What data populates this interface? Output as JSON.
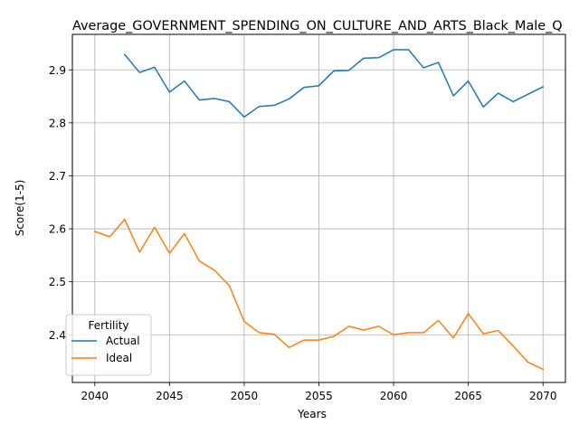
{
  "chart_data": {
    "type": "line",
    "title": "Average_GOVERNMENT_SPENDING_ON_CULTURE_AND_ARTS_Black_Male_Q",
    "xlabel": "Years",
    "ylabel": "Score(1-5)",
    "xlim": [
      2038.5,
      2071.5
    ],
    "ylim": [
      2.31,
      2.967
    ],
    "x_ticks": [
      2040,
      2045,
      2050,
      2055,
      2060,
      2065,
      2070
    ],
    "y_ticks": [
      2.4,
      2.5,
      2.6,
      2.7,
      2.8,
      2.9
    ],
    "grid": true,
    "legend": {
      "title": "Fertility",
      "position": "lower-left"
    },
    "series": [
      {
        "name": "Actual",
        "color": "#1f77b4",
        "x": [
          2042,
          2043,
          2044,
          2045,
          2046,
          2047,
          2048,
          2049,
          2050,
          2051,
          2052,
          2053,
          2054,
          2055,
          2056,
          2057,
          2058,
          2059,
          2060,
          2061,
          2062,
          2063,
          2064,
          2065,
          2066,
          2067,
          2068,
          2069,
          2070
        ],
        "values": [
          2.929,
          2.895,
          2.905,
          2.858,
          2.879,
          2.843,
          2.846,
          2.84,
          2.811,
          2.831,
          2.833,
          2.845,
          2.867,
          2.87,
          2.898,
          2.899,
          2.922,
          2.923,
          2.938,
          2.938,
          2.904,
          2.914,
          2.851,
          2.879,
          2.83,
          2.856,
          2.84,
          2.854,
          2.868
        ]
      },
      {
        "name": "Ideal",
        "color": "#ff7f0e",
        "x": [
          2040,
          2041,
          2042,
          2043,
          2044,
          2045,
          2046,
          2047,
          2048,
          2049,
          2050,
          2051,
          2052,
          2053,
          2054,
          2055,
          2056,
          2057,
          2058,
          2059,
          2060,
          2061,
          2062,
          2063,
          2064,
          2065,
          2066,
          2067,
          2068,
          2069,
          2070
        ],
        "values": [
          2.595,
          2.585,
          2.618,
          2.556,
          2.603,
          2.554,
          2.591,
          2.539,
          2.522,
          2.493,
          2.425,
          2.404,
          2.401,
          2.376,
          2.39,
          2.39,
          2.397,
          2.416,
          2.409,
          2.416,
          2.4,
          2.404,
          2.404,
          2.427,
          2.394,
          2.44,
          2.402,
          2.408,
          2.379,
          2.348,
          2.335
        ]
      }
    ]
  }
}
